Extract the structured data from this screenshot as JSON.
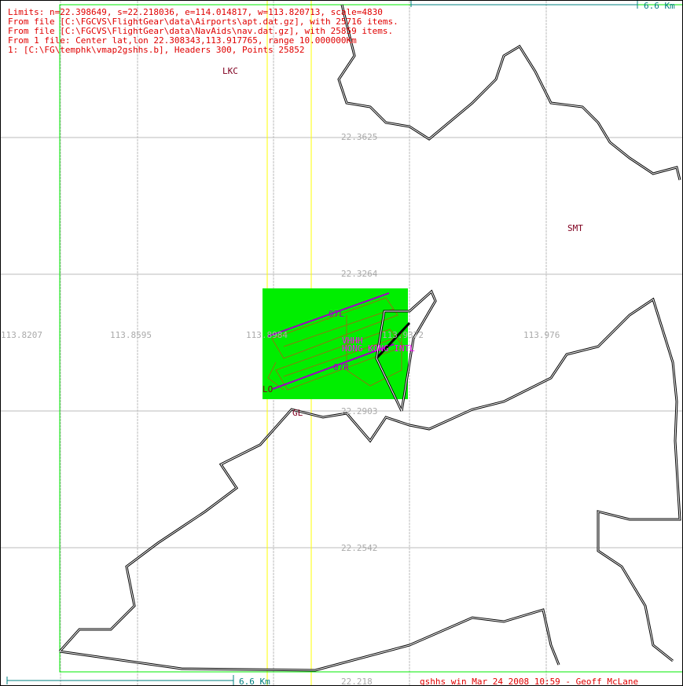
{
  "info_lines": [
    "Limits: n=22.398649, s=22.218036, e=114.014817, w=113.820713, scale=4830",
    "From file [C:\\FGCVS\\FlightGear\\data\\Airports\\apt.dat.gz], with 25716 items.",
    "From file [C:\\FGCVS\\FlightGear\\data\\NavAids\\nav.dat.gz], with 25859 items.",
    "From 1 file: Center lat,lon 22.308343,113.917765, range 10.000000Km",
    "1: [C:\\FG\\temphk\\vmap2gshhs.b], Headers 300, Points 25852"
  ],
  "scale_top": "6.6 Km",
  "scale_bottom": "6.6 Km",
  "footer": "gshhs win Mar 24 2008 10:59 - Geoff McLane",
  "lon_labels": [
    "113.8207",
    "113.8595",
    "113.8984",
    "113.9372",
    "113.976"
  ],
  "lat_labels": [
    "22.3625",
    "22.3264",
    "22.2903",
    "22.2542",
    "22.218"
  ],
  "places": {
    "lkc": "LKC",
    "smt": "SMT",
    "lo": "LO",
    "gl": "GL"
  },
  "airport": {
    "icao": "VHHH",
    "name": "HONG KONG INTL",
    "rwy_north": "07L",
    "rwy_south": "07R"
  },
  "colors": {
    "info": "#e00000",
    "airport_bg": "#00ee00",
    "runway": "#a000c0",
    "taxiway": "#8a7a10",
    "grid": "#bbbbbb",
    "yellow": "#ffff00",
    "scale": "#008080"
  }
}
